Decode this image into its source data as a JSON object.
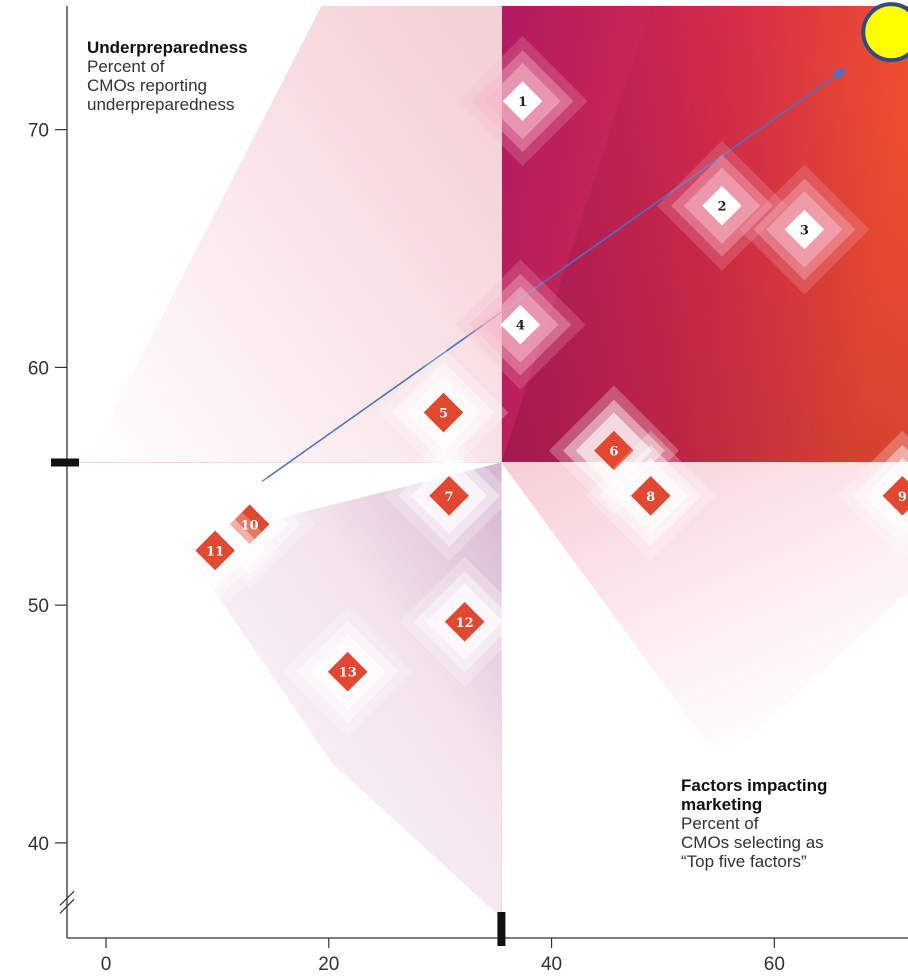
{
  "chart_data": {
    "type": "scatter",
    "x_axis": {
      "ticks": [
        0,
        20,
        40,
        60
      ],
      "range": [
        -3.5,
        72
      ]
    },
    "y_axis": {
      "ticks": [
        40,
        50,
        60,
        70
      ],
      "range": [
        36,
        75.2
      ]
    },
    "quadrant_divider": {
      "x": 35.5,
      "y": 56
    },
    "upper_left_label": {
      "title": "Underpreparedness",
      "lines": [
        "Percent of",
        "CMOs reporting",
        "underpreparedness"
      ]
    },
    "lower_right_label": {
      "title_lines": [
        "Factors impacting",
        "marketing"
      ],
      "lines": [
        "Percent of",
        "CMOs selecting as",
        "“Top five factors”"
      ]
    },
    "points": [
      {
        "label": "1",
        "x": 37.4,
        "y": 71.2,
        "style": "white"
      },
      {
        "label": "2",
        "x": 55.3,
        "y": 66.8,
        "style": "white"
      },
      {
        "label": "3",
        "x": 62.7,
        "y": 65.8,
        "style": "white"
      },
      {
        "label": "4",
        "x": 37.2,
        "y": 61.8,
        "style": "white"
      },
      {
        "label": "5",
        "x": 30.3,
        "y": 58.1,
        "style": "red"
      },
      {
        "label": "6",
        "x": 45.6,
        "y": 56.5,
        "style": "red"
      },
      {
        "label": "7",
        "x": 30.8,
        "y": 54.6,
        "style": "red"
      },
      {
        "label": "8",
        "x": 48.9,
        "y": 54.6,
        "style": "red"
      },
      {
        "label": "9",
        "x": 71.5,
        "y": 54.6,
        "style": "red"
      },
      {
        "label": "10",
        "x": 12.9,
        "y": 53.4,
        "style": "red"
      },
      {
        "label": "11",
        "x": 9.8,
        "y": 52.3,
        "style": "red"
      },
      {
        "label": "12",
        "x": 32.2,
        "y": 49.3,
        "style": "red"
      },
      {
        "label": "13",
        "x": 21.7,
        "y": 47.2,
        "style": "red"
      }
    ],
    "annotation_arrow": {
      "from": [
        14,
        55.2
      ],
      "to": [
        66.5,
        72.6
      ],
      "color": "#4a72c4"
    },
    "highlight_marker": {
      "x": 70.5,
      "y": 74.1,
      "fill": "#ffff00",
      "stroke": "#2e4a8a"
    },
    "colors": {
      "marker_red": "#e3472f",
      "marker_white": "#ffffff",
      "quadrant_top_right_start": "#b01c5e",
      "quadrant_top_right_end": "#ee4b2f"
    }
  }
}
